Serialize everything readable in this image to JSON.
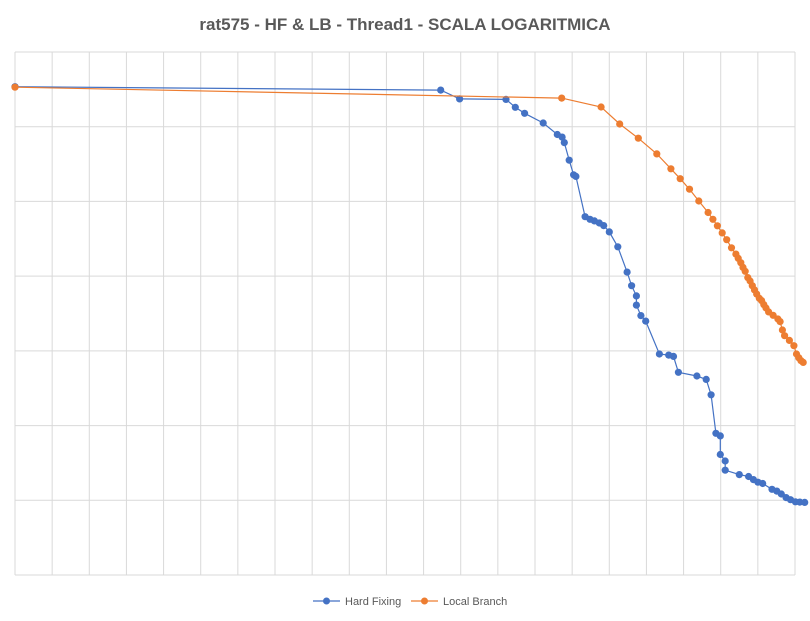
{
  "chart_data": {
    "type": "line",
    "title": "rat575 - HF & LB - Thread1 - SCALA LOGARITMICA",
    "xlabel": "",
    "ylabel": "",
    "y_scale": "log",
    "x_range": [
      0,
      21
    ],
    "y_range": [
      0,
      1
    ],
    "grid": true,
    "legend": "bottom-center",
    "series": [
      {
        "name": "Hard Fixing",
        "color": "#4472C4",
        "points": [
          [
            0.0,
            0.9337
          ],
          [
            11.46,
            0.9272
          ],
          [
            11.97,
            0.9103
          ],
          [
            13.22,
            0.9093
          ],
          [
            13.47,
            0.8943
          ],
          [
            13.72,
            0.8828
          ],
          [
            14.22,
            0.8642
          ],
          [
            14.6,
            0.8422
          ],
          [
            14.73,
            0.8372
          ],
          [
            14.79,
            0.8267
          ],
          [
            14.92,
            0.7932
          ],
          [
            15.04,
            0.7652
          ],
          [
            15.1,
            0.7622
          ],
          [
            15.35,
            0.6851
          ],
          [
            15.48,
            0.6801
          ],
          [
            15.6,
            0.6771
          ],
          [
            15.73,
            0.6731
          ],
          [
            15.85,
            0.6681
          ],
          [
            16.0,
            0.6561
          ],
          [
            16.23,
            0.6276
          ],
          [
            16.48,
            0.5791
          ],
          [
            16.6,
            0.5531
          ],
          [
            16.73,
            0.5336
          ],
          [
            16.73,
            0.5161
          ],
          [
            16.85,
            0.496
          ],
          [
            16.98,
            0.4855
          ],
          [
            17.35,
            0.4225
          ],
          [
            17.6,
            0.4205
          ],
          [
            17.73,
            0.418
          ],
          [
            17.86,
            0.3875
          ],
          [
            18.36,
            0.3805
          ],
          [
            18.61,
            0.374
          ],
          [
            18.74,
            0.3445
          ],
          [
            18.87,
            0.2709
          ],
          [
            18.99,
            0.2659
          ],
          [
            18.99,
            0.2304
          ],
          [
            19.12,
            0.2179
          ],
          [
            19.12,
            0.2004
          ],
          [
            19.5,
            0.1919
          ],
          [
            19.75,
            0.1884
          ],
          [
            19.88,
            0.1824
          ],
          [
            20.0,
            0.1774
          ],
          [
            20.13,
            0.1749
          ],
          [
            20.38,
            0.1639
          ],
          [
            20.51,
            0.1604
          ],
          [
            20.63,
            0.1549
          ],
          [
            20.76,
            0.1479
          ],
          [
            20.88,
            0.1439
          ],
          [
            21.01,
            0.1399
          ],
          [
            21.13,
            0.1394
          ],
          [
            21.26,
            0.1389
          ]
        ]
      },
      {
        "name": "Local Branch",
        "color": "#ED7D31",
        "points": [
          [
            0.0,
            0.9327
          ],
          [
            14.72,
            0.9118
          ],
          [
            15.78,
            0.8948
          ],
          [
            16.28,
            0.8623
          ],
          [
            16.78,
            0.8352
          ],
          [
            17.28,
            0.8052
          ],
          [
            17.66,
            0.7767
          ],
          [
            17.91,
            0.7577
          ],
          [
            18.16,
            0.7377
          ],
          [
            18.41,
            0.7152
          ],
          [
            18.66,
            0.6932
          ],
          [
            18.79,
            0.6801
          ],
          [
            18.91,
            0.6676
          ],
          [
            19.04,
            0.6541
          ],
          [
            19.16,
            0.6411
          ],
          [
            19.29,
            0.6256
          ],
          [
            19.41,
            0.6136
          ],
          [
            19.47,
            0.6056
          ],
          [
            19.54,
            0.5971
          ],
          [
            19.6,
            0.5881
          ],
          [
            19.66,
            0.5806
          ],
          [
            19.73,
            0.5686
          ],
          [
            19.79,
            0.5621
          ],
          [
            19.85,
            0.5531
          ],
          [
            19.91,
            0.5451
          ],
          [
            19.97,
            0.5371
          ],
          [
            20.04,
            0.5291
          ],
          [
            20.1,
            0.5246
          ],
          [
            20.16,
            0.5171
          ],
          [
            20.22,
            0.5106
          ],
          [
            20.29,
            0.5031
          ],
          [
            20.41,
            0.4966
          ],
          [
            20.54,
            0.4895
          ],
          [
            20.6,
            0.4845
          ],
          [
            20.66,
            0.4685
          ],
          [
            20.72,
            0.4575
          ],
          [
            20.85,
            0.4485
          ],
          [
            20.97,
            0.4385
          ],
          [
            21.04,
            0.4225
          ],
          [
            21.1,
            0.4155
          ],
          [
            21.16,
            0.41
          ],
          [
            21.22,
            0.4065
          ]
        ]
      }
    ]
  }
}
